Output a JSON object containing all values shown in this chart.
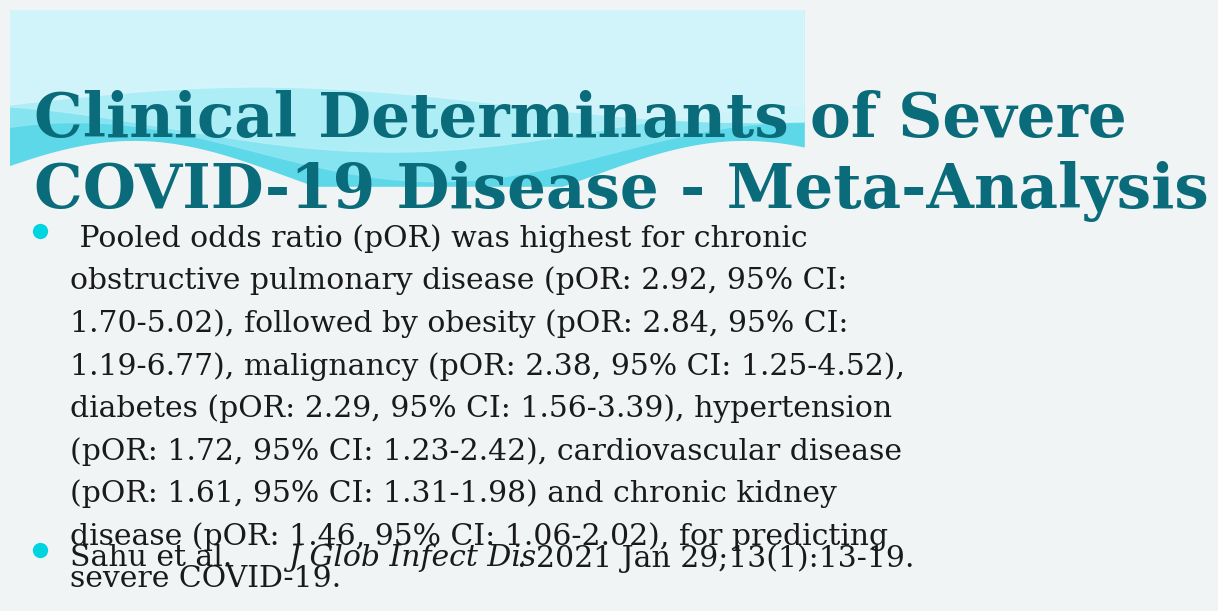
{
  "title_line1": "Clinical Determinants of Severe",
  "title_line2": "COVID-19 Disease - Meta-Analysis",
  "title_color": "#0a6b7a",
  "title_fontsize": 44,
  "bullet_color": "#00d4e0",
  "text_color": "#1a1a1a",
  "body_fontsize": 21.5,
  "background_color": "#f0f4f5",
  "bullet1_lines": [
    " Pooled odds ratio (pOR) was highest for chronic",
    "obstructive pulmonary disease (pOR: 2.92, 95% CI:",
    "1.70-5.02), followed by obesity (pOR: 2.84, 95% CI:",
    "1.19-6.77), malignancy (pOR: 2.38, 95% CI: 1.25-4.52),",
    "diabetes (pOR: 2.29, 95% CI: 1.56-3.39), hypertension",
    "(pOR: 1.72, 95% CI: 1.23-2.42), cardiovascular disease",
    "(pOR: 1.61, 95% CI: 1.31-1.98) and chronic kidney",
    "disease (pOR: 1.46, 95% CI: 1.06-2.02), for predicting",
    "severe COVID-19."
  ],
  "bullet2_normal1": "Sahu et al. ",
  "bullet2_italic": "J Glob Infect Dis",
  "bullet2_normal2": ". 2021 Jan 29;13(1):13-19.",
  "wave_color1": "#5dd8e8",
  "wave_color2": "#8ee6f2",
  "wave_color3": "#b8f0f8",
  "wave_color4": "#d8f6fc",
  "header_top_color": "#5ecfe0"
}
